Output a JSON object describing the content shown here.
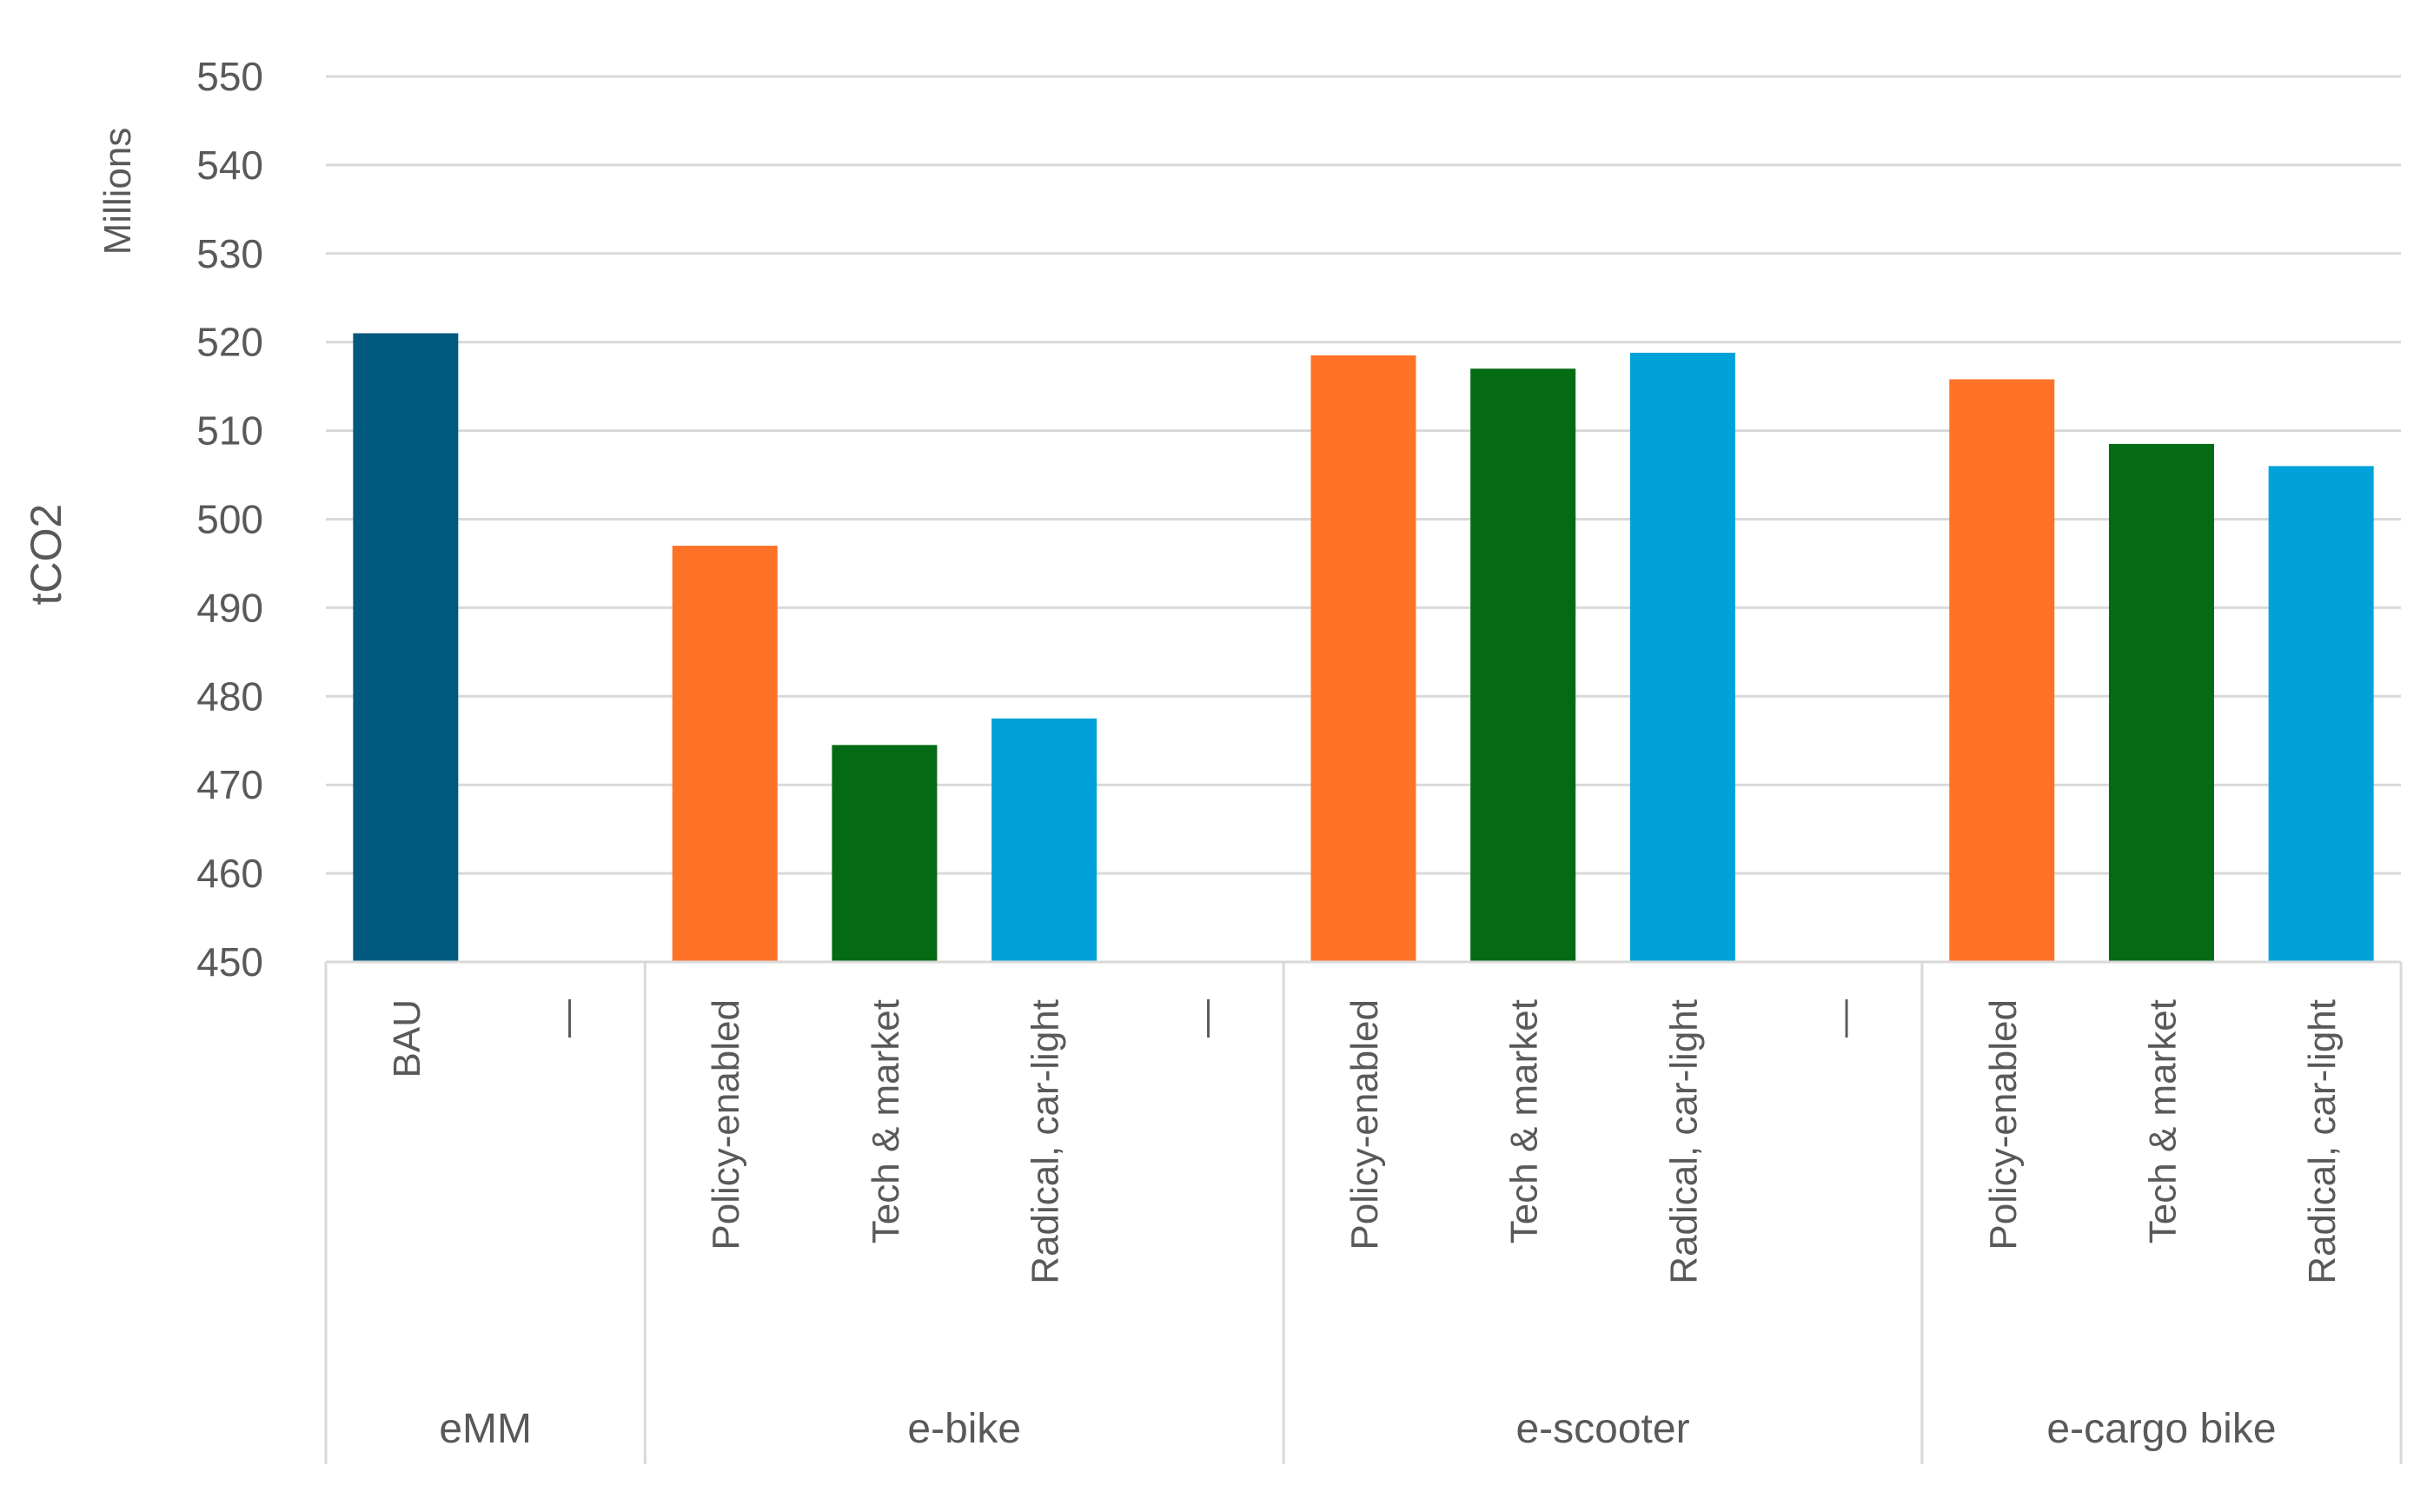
{
  "chart_data": {
    "type": "bar",
    "title": "",
    "ylabel": "tCO2",
    "yunit": "Millions",
    "ylim": [
      450,
      550
    ],
    "yticks": [
      450,
      460,
      470,
      480,
      490,
      500,
      510,
      520,
      530,
      540,
      550
    ],
    "grid": true,
    "legend": "none",
    "groups": [
      {
        "name": "eMM",
        "bars": [
          {
            "label": "BAU",
            "value": 521,
            "color": "#005a7e"
          },
          {
            "label": "",
            "value": null,
            "color": null
          }
        ]
      },
      {
        "name": "e-bike",
        "bars": [
          {
            "label": "Policy-enabled",
            "value": 497,
            "color": "#ff7328"
          },
          {
            "label": "Tech & market",
            "value": 474.5,
            "color": "#046a14"
          },
          {
            "label": "Radical, car-light",
            "value": 477.5,
            "color": "#00a2d9"
          },
          {
            "label": "",
            "value": null,
            "color": null
          }
        ]
      },
      {
        "name": "e-scooter",
        "bars": [
          {
            "label": "Policy-enabled",
            "value": 518.5,
            "color": "#ff7328"
          },
          {
            "label": "Tech & market",
            "value": 517,
            "color": "#046a14"
          },
          {
            "label": "Radical, car-light",
            "value": 518.8,
            "color": "#00a2d9"
          },
          {
            "label": "",
            "value": null,
            "color": null
          }
        ]
      },
      {
        "name": "e-cargo bike",
        "bars": [
          {
            "label": "Policy-enabled",
            "value": 515.8,
            "color": "#ff7328"
          },
          {
            "label": "Tech & market",
            "value": 508.5,
            "color": "#046a14"
          },
          {
            "label": "Radical, car-light",
            "value": 506,
            "color": "#00a2d9"
          }
        ]
      }
    ]
  }
}
